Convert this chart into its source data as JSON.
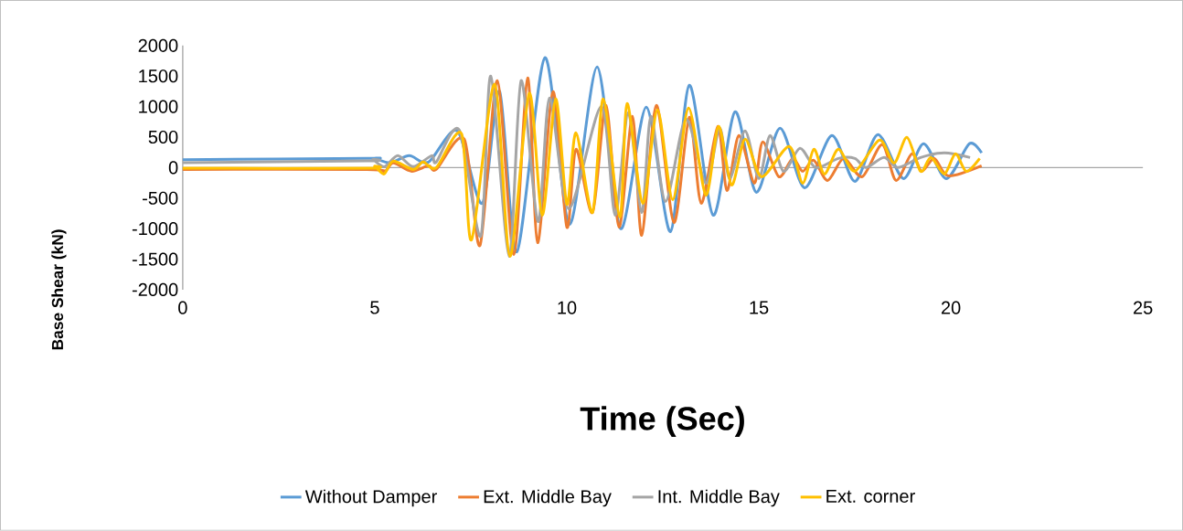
{
  "chart_data": {
    "type": "line",
    "xlabel": "Time (Sec)",
    "ylabel": "Base Shear (kN)",
    "xlim": [
      0,
      25
    ],
    "ylim": [
      -2000,
      2000
    ],
    "xticks": [
      0,
      5,
      10,
      15,
      20,
      25
    ],
    "yticks": [
      -2000,
      -1500,
      -1000,
      -500,
      0,
      500,
      1000,
      1500,
      2000
    ],
    "legend": "bottom",
    "series": [
      {
        "name": "Without Damper",
        "color": "#5b9bd5",
        "x": [
          0,
          4.8,
          5.0,
          5.4,
          5.9,
          6.4,
          7.15,
          7.8,
          8.25,
          8.7,
          9.43,
          10.07,
          10.79,
          11.4,
          12.07,
          12.7,
          13.19,
          13.81,
          14.38,
          14.93,
          15.55,
          16.19,
          16.9,
          17.5,
          18.1,
          18.76,
          19.29,
          19.88,
          20.48,
          20.8
        ],
        "values": [
          130,
          150,
          150,
          80,
          195,
          90,
          600,
          -585,
          1250,
          -1380,
          1800,
          -930,
          1650,
          -1000,
          990,
          -1050,
          1350,
          -780,
          915,
          -405,
          645,
          -330,
          525,
          -225,
          540,
          -180,
          390,
          -180,
          390,
          240
        ]
      },
      {
        "name": "Ext. Middle Bay",
        "color": "#ed7d31",
        "x": [
          0,
          4.8,
          5.24,
          5.48,
          5.95,
          6.4,
          6.6,
          7.33,
          7.74,
          8.19,
          8.62,
          8.98,
          9.24,
          9.64,
          10.0,
          10.24,
          10.67,
          11.02,
          11.36,
          11.71,
          11.95,
          12.33,
          12.79,
          13.19,
          13.5,
          13.93,
          14.17,
          14.48,
          14.88,
          15.1,
          15.52,
          15.88,
          16.14,
          16.43,
          16.79,
          17.21,
          17.69,
          18.21,
          18.57,
          18.98,
          19.24,
          19.57,
          19.93,
          20.8
        ],
        "values": [
          -30,
          -30,
          -75,
          75,
          -60,
          30,
          -30,
          465,
          -1275,
          1425,
          -1425,
          1470,
          -1230,
          1245,
          -975,
          300,
          -735,
          1020,
          -975,
          840,
          -1110,
          1020,
          -900,
          825,
          -585,
          675,
          -375,
          525,
          -255,
          420,
          -150,
          150,
          -60,
          120,
          -210,
          150,
          -150,
          375,
          -210,
          225,
          -60,
          150,
          -135,
          30
        ]
      },
      {
        "name": "Int. Middle Bay",
        "color": "#a5a5a5",
        "x": [
          0,
          4.8,
          4.95,
          5.25,
          5.6,
          6.0,
          6.48,
          6.6,
          7.2,
          7.76,
          8.02,
          8.5,
          8.81,
          9.25,
          9.55,
          10.05,
          10.9,
          11.26,
          11.6,
          11.95,
          12.19,
          12.57,
          13.1,
          13.62,
          13.98,
          14.24,
          14.64,
          15.0,
          15.29,
          15.64,
          16.07,
          16.48,
          17.07,
          17.5,
          17.79,
          18.26,
          18.62,
          19.21,
          19.83,
          20.5
        ],
        "values": [
          80,
          110,
          130,
          15,
          195,
          15,
          195,
          90,
          615,
          -1125,
          1500,
          -1455,
          1425,
          -885,
          1140,
          -675,
          1000,
          -780,
          900,
          -735,
          840,
          -555,
          795,
          -255,
          645,
          -180,
          600,
          -180,
          525,
          -60,
          315,
          0,
          150,
          150,
          0,
          165,
          0,
          165,
          240,
          165
        ]
      },
      {
        "name": "Ext. corner",
        "color": "#ffc000",
        "x": [
          0,
          4.8,
          5.0,
          5.24,
          5.48,
          6.0,
          6.26,
          6.6,
          7.26,
          7.52,
          8.12,
          8.52,
          9.02,
          9.36,
          9.71,
          10.0,
          10.24,
          10.67,
          10.95,
          11.38,
          11.57,
          11.98,
          12.36,
          12.76,
          13.17,
          13.62,
          13.95,
          14.29,
          14.64,
          15.07,
          15.79,
          16.14,
          16.43,
          16.71,
          17.07,
          17.5,
          18.14,
          18.52,
          18.86,
          19.21,
          19.48,
          19.83,
          20.12,
          20.4,
          20.75
        ],
        "values": [
          -10,
          -10,
          20,
          -105,
          105,
          -30,
          90,
          0,
          555,
          -1185,
          1365,
          -1455,
          1215,
          -780,
          1125,
          -600,
          570,
          -735,
          1125,
          -810,
          1050,
          -585,
          945,
          -525,
          975,
          -450,
          675,
          -285,
          465,
          -150,
          345,
          -255,
          300,
          -105,
          300,
          -60,
          450,
          75,
          495,
          -60,
          165,
          -105,
          225,
          -60,
          150
        ]
      }
    ]
  }
}
